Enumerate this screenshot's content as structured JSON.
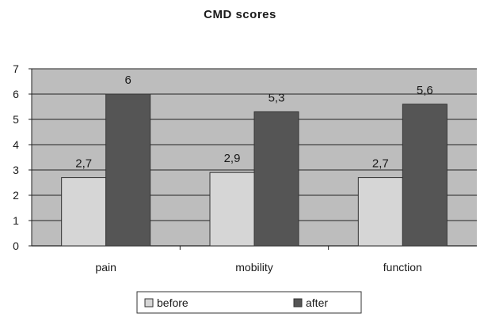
{
  "chart_data": {
    "type": "bar",
    "title": "CMD scores",
    "xlabel": "",
    "ylabel": "",
    "categories": [
      "pain",
      "mobility",
      "function"
    ],
    "series": [
      {
        "name": "before",
        "values": [
          2.7,
          2.9,
          2.7
        ],
        "labels": [
          "2,7",
          "2,9",
          "2,7"
        ],
        "color": "#d6d6d6"
      },
      {
        "name": "after",
        "values": [
          6,
          5.3,
          5.6
        ],
        "labels": [
          "6",
          "5,3",
          "5,6"
        ],
        "color": "#555555"
      }
    ],
    "ylim": [
      0,
      7
    ],
    "yticks": [
      "0",
      "1",
      "2",
      "3",
      "4",
      "5",
      "6",
      "7"
    ],
    "grid": true,
    "plot_background": "#bdbdbd",
    "legend_position": "bottom"
  }
}
